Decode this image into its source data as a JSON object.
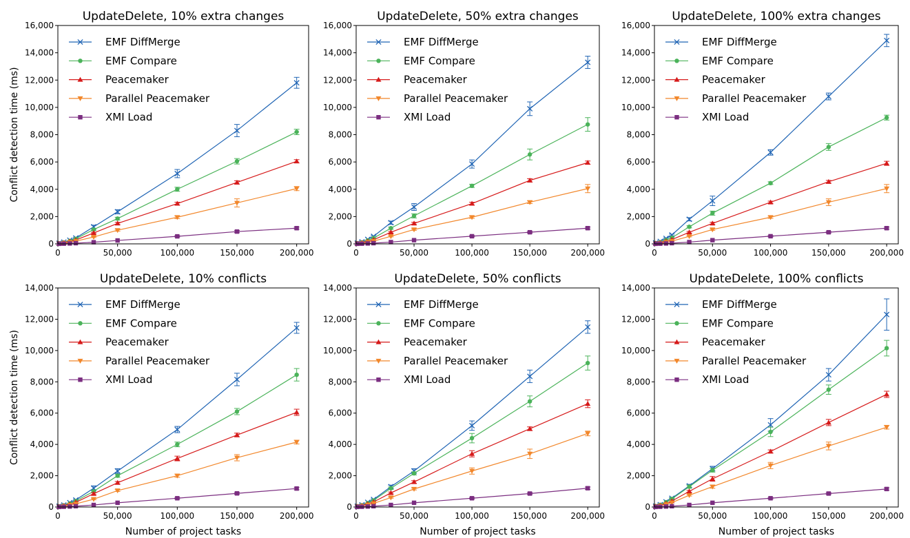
{
  "figure": {
    "xlabel": "Number of project tasks",
    "ylabel": "Conflict detection time (ms)"
  },
  "series_colors": {
    "EMF DiffMerge": "#1f64b4",
    "EMF Compare": "#4bb35a",
    "Peacemaker": "#d61a1a",
    "Parallel Peacemaker": "#f2872b",
    "XMI Load": "#7b2e80"
  },
  "series_markers": {
    "EMF DiffMerge": "x",
    "EMF Compare": "circle",
    "Peacemaker": "triangle-up",
    "Parallel Peacemaker": "triangle-down",
    "XMI Load": "square"
  },
  "chart_data": [
    {
      "type": "line",
      "title": "UpdateDelete, 10% extra changes",
      "xlabel": "",
      "ylabel": "Conflict detection time (ms)",
      "xlim": [
        0,
        210000
      ],
      "ylim": [
        0,
        16000
      ],
      "xticks": [
        0,
        50000,
        100000,
        150000,
        200000
      ],
      "xtick_labels": [
        "0",
        "50,000",
        "100,000",
        "150,000",
        "200,000"
      ],
      "yticks": [
        0,
        2000,
        4000,
        6000,
        8000,
        10000,
        12000,
        14000,
        16000
      ],
      "ytick_labels": [
        "0",
        "2,000",
        "4,000",
        "6,000",
        "8,000",
        "10,000",
        "12,000",
        "14,000",
        "16,000"
      ],
      "legend": "upper-left",
      "x": [
        1000,
        5000,
        10000,
        15000,
        30000,
        50000,
        100000,
        150000,
        200000
      ],
      "series": [
        {
          "name": "EMF DiffMerge",
          "values": [
            50,
            130,
            270,
            430,
            1250,
            2350,
            5150,
            8300,
            11800
          ],
          "err": [
            10,
            20,
            30,
            40,
            120,
            150,
            300,
            450,
            400
          ]
        },
        {
          "name": "EMF Compare",
          "values": [
            40,
            100,
            220,
            370,
            1050,
            1850,
            4000,
            6050,
            8200
          ],
          "err": [
            10,
            15,
            25,
            30,
            60,
            100,
            150,
            200,
            200
          ]
        },
        {
          "name": "Peacemaker",
          "values": [
            30,
            80,
            180,
            280,
            800,
            1500,
            2950,
            4500,
            6050
          ],
          "err": [
            5,
            10,
            20,
            25,
            50,
            80,
            100,
            120,
            120
          ]
        },
        {
          "name": "Parallel Peacemaker",
          "values": [
            20,
            60,
            120,
            200,
            500,
            1000,
            1950,
            3000,
            4050
          ],
          "err": [
            5,
            10,
            15,
            20,
            40,
            70,
            100,
            300,
            150
          ]
        },
        {
          "name": "XMI Load",
          "values": [
            5,
            15,
            30,
            50,
            120,
            250,
            550,
            900,
            1150
          ],
          "err": [
            2,
            5,
            5,
            8,
            15,
            30,
            50,
            80,
            80
          ]
        }
      ]
    },
    {
      "type": "line",
      "title": "UpdateDelete, 50% extra changes",
      "xlabel": "",
      "ylabel": "",
      "xlim": [
        0,
        210000
      ],
      "ylim": [
        0,
        16000
      ],
      "xticks": [
        0,
        50000,
        100000,
        150000,
        200000
      ],
      "xtick_labels": [
        "0",
        "50,000",
        "100,000",
        "150,000",
        "200,000"
      ],
      "yticks": [
        0,
        2000,
        4000,
        6000,
        8000,
        10000,
        12000,
        14000,
        16000
      ],
      "ytick_labels": [
        "0",
        "2,000",
        "4,000",
        "6,000",
        "8,000",
        "10,000",
        "12,000",
        "14,000",
        "16,000"
      ],
      "legend": "upper-left",
      "x": [
        1000,
        5000,
        10000,
        15000,
        30000,
        50000,
        100000,
        150000,
        200000
      ],
      "series": [
        {
          "name": "EMF DiffMerge",
          "values": [
            60,
            150,
            330,
            550,
            1550,
            2700,
            5850,
            9900,
            13300
          ],
          "err": [
            10,
            20,
            30,
            50,
            120,
            250,
            300,
            500,
            450
          ]
        },
        {
          "name": "EMF Compare",
          "values": [
            45,
            110,
            250,
            420,
            1150,
            2050,
            4250,
            6550,
            8750
          ],
          "err": [
            10,
            15,
            25,
            30,
            80,
            150,
            120,
            400,
            500
          ]
        },
        {
          "name": "Peacemaker",
          "values": [
            30,
            80,
            180,
            300,
            850,
            1500,
            2950,
            4650,
            5950
          ],
          "err": [
            5,
            10,
            20,
            25,
            60,
            80,
            100,
            120,
            120
          ]
        },
        {
          "name": "Parallel Peacemaker",
          "values": [
            20,
            55,
            120,
            200,
            550,
            1050,
            1950,
            3050,
            4050
          ],
          "err": [
            5,
            10,
            15,
            20,
            40,
            60,
            80,
            100,
            300
          ]
        },
        {
          "name": "XMI Load",
          "values": [
            5,
            15,
            30,
            50,
            130,
            270,
            560,
            850,
            1150
          ],
          "err": [
            2,
            5,
            5,
            8,
            15,
            30,
            50,
            60,
            80
          ]
        }
      ]
    },
    {
      "type": "line",
      "title": "UpdateDelete, 100% extra changes",
      "xlabel": "",
      "ylabel": "",
      "xlim": [
        0,
        210000
      ],
      "ylim": [
        0,
        16000
      ],
      "xticks": [
        0,
        50000,
        100000,
        150000,
        200000
      ],
      "xtick_labels": [
        "0",
        "50,000",
        "100,000",
        "150,000",
        "200,000"
      ],
      "yticks": [
        0,
        2000,
        4000,
        6000,
        8000,
        10000,
        12000,
        14000,
        16000
      ],
      "ytick_labels": [
        "0",
        "2,000",
        "4,000",
        "6,000",
        "8,000",
        "10,000",
        "12,000",
        "14,000",
        "16,000"
      ],
      "legend": "upper-left",
      "x": [
        1000,
        5000,
        10000,
        15000,
        30000,
        50000,
        100000,
        150000,
        200000
      ],
      "series": [
        {
          "name": "EMF DiffMerge",
          "values": [
            70,
            180,
            400,
            650,
            1800,
            3150,
            6700,
            10800,
            14900
          ],
          "err": [
            10,
            20,
            40,
            60,
            120,
            350,
            200,
            250,
            450
          ]
        },
        {
          "name": "EMF Compare",
          "values": [
            50,
            120,
            280,
            450,
            1250,
            2250,
            4450,
            7100,
            9250
          ],
          "err": [
            10,
            15,
            25,
            35,
            80,
            150,
            100,
            250,
            180
          ]
        },
        {
          "name": "Peacemaker",
          "values": [
            35,
            85,
            190,
            310,
            850,
            1500,
            3050,
            4550,
            5900
          ],
          "err": [
            5,
            10,
            20,
            25,
            60,
            80,
            80,
            100,
            150
          ]
        },
        {
          "name": "Parallel Peacemaker",
          "values": [
            20,
            55,
            120,
            200,
            550,
            1050,
            1950,
            3050,
            4050
          ],
          "err": [
            5,
            10,
            15,
            20,
            40,
            60,
            80,
            250,
            300
          ]
        },
        {
          "name": "XMI Load",
          "values": [
            5,
            15,
            30,
            50,
            130,
            270,
            560,
            850,
            1150
          ],
          "err": [
            2,
            5,
            5,
            8,
            15,
            30,
            50,
            60,
            80
          ]
        }
      ]
    },
    {
      "type": "line",
      "title": "UpdateDelete, 10% conflicts",
      "xlabel": "Number of project tasks",
      "ylabel": "Conflict detection time (ms)",
      "xlim": [
        0,
        210000
      ],
      "ylim": [
        0,
        14000
      ],
      "xticks": [
        0,
        50000,
        100000,
        150000,
        200000
      ],
      "xtick_labels": [
        "0",
        "50,000",
        "100,000",
        "150,000",
        "200,000"
      ],
      "yticks": [
        0,
        2000,
        4000,
        6000,
        8000,
        10000,
        12000,
        14000
      ],
      "ytick_labels": [
        "0",
        "2,000",
        "4,000",
        "6,000",
        "8,000",
        "10,000",
        "12,000",
        "14,000"
      ],
      "legend": "upper-left",
      "x": [
        1000,
        5000,
        10000,
        15000,
        30000,
        50000,
        100000,
        150000,
        200000
      ],
      "series": [
        {
          "name": "EMF DiffMerge",
          "values": [
            50,
            130,
            280,
            450,
            1200,
            2300,
            4950,
            8150,
            11450
          ],
          "err": [
            10,
            20,
            30,
            40,
            150,
            150,
            200,
            400,
            350
          ]
        },
        {
          "name": "EMF Compare",
          "values": [
            40,
            100,
            230,
            380,
            1000,
            2000,
            4000,
            6100,
            8450
          ],
          "err": [
            10,
            15,
            25,
            30,
            80,
            100,
            150,
            200,
            400
          ]
        },
        {
          "name": "Peacemaker",
          "values": [
            30,
            80,
            180,
            300,
            850,
            1550,
            3100,
            4600,
            6050
          ],
          "err": [
            5,
            10,
            20,
            25,
            60,
            80,
            150,
            120,
            200
          ]
        },
        {
          "name": "Parallel Peacemaker",
          "values": [
            20,
            55,
            120,
            200,
            500,
            1050,
            2000,
            3150,
            4150
          ],
          "err": [
            5,
            10,
            15,
            20,
            40,
            60,
            100,
            200,
            120
          ]
        },
        {
          "name": "XMI Load",
          "values": [
            5,
            15,
            30,
            50,
            130,
            270,
            560,
            870,
            1180
          ],
          "err": [
            2,
            5,
            5,
            8,
            15,
            30,
            50,
            60,
            80
          ]
        }
      ]
    },
    {
      "type": "line",
      "title": "UpdateDelete, 50% conflicts",
      "xlabel": "Number of project tasks",
      "ylabel": "",
      "xlim": [
        0,
        210000
      ],
      "ylim": [
        0,
        14000
      ],
      "xticks": [
        0,
        50000,
        100000,
        150000,
        200000
      ],
      "xtick_labels": [
        "0",
        "50,000",
        "100,000",
        "150,000",
        "200,000"
      ],
      "yticks": [
        0,
        2000,
        4000,
        6000,
        8000,
        10000,
        12000,
        14000
      ],
      "ytick_labels": [
        "0",
        "2,000",
        "4,000",
        "6,000",
        "8,000",
        "10,000",
        "12,000",
        "14,000"
      ],
      "legend": "upper-left",
      "x": [
        1000,
        5000,
        10000,
        15000,
        30000,
        50000,
        100000,
        150000,
        200000
      ],
      "series": [
        {
          "name": "EMF DiffMerge",
          "values": [
            55,
            140,
            300,
            480,
            1300,
            2300,
            5200,
            8350,
            11500
          ],
          "err": [
            10,
            20,
            30,
            40,
            100,
            150,
            300,
            400,
            400
          ]
        },
        {
          "name": "EMF Compare",
          "values": [
            45,
            110,
            250,
            420,
            1200,
            2150,
            4400,
            6750,
            9200
          ],
          "err": [
            10,
            15,
            25,
            30,
            80,
            100,
            300,
            350,
            450
          ]
        },
        {
          "name": "Peacemaker",
          "values": [
            35,
            90,
            200,
            320,
            900,
            1600,
            3400,
            5000,
            6600
          ],
          "err": [
            5,
            10,
            20,
            25,
            60,
            80,
            200,
            120,
            250
          ]
        },
        {
          "name": "Parallel Peacemaker",
          "values": [
            25,
            65,
            140,
            230,
            600,
            1150,
            2300,
            3400,
            4700
          ],
          "err": [
            5,
            10,
            15,
            20,
            40,
            60,
            200,
            300,
            150
          ]
        },
        {
          "name": "XMI Load",
          "values": [
            5,
            15,
            30,
            50,
            130,
            270,
            560,
            860,
            1200
          ],
          "err": [
            2,
            5,
            5,
            8,
            15,
            30,
            50,
            60,
            80
          ]
        }
      ]
    },
    {
      "type": "line",
      "title": "UpdateDelete, 100% conflicts",
      "xlabel": "Number of project tasks",
      "ylabel": "",
      "xlim": [
        0,
        210000
      ],
      "ylim": [
        0,
        14000
      ],
      "xticks": [
        0,
        50000,
        100000,
        150000,
        200000
      ],
      "xtick_labels": [
        "0",
        "50,000",
        "100,000",
        "150,000",
        "200,000"
      ],
      "yticks": [
        0,
        2000,
        4000,
        6000,
        8000,
        10000,
        12000,
        14000
      ],
      "ytick_labels": [
        "0",
        "2,000",
        "4,000",
        "6,000",
        "8,000",
        "10,000",
        "12,000",
        "14,000"
      ],
      "legend": "upper-left",
      "x": [
        1000,
        5000,
        10000,
        15000,
        30000,
        50000,
        100000,
        150000,
        200000
      ],
      "series": [
        {
          "name": "EMF DiffMerge",
          "values": [
            60,
            150,
            330,
            560,
            1350,
            2450,
            5250,
            8450,
            12300
          ],
          "err": [
            10,
            20,
            30,
            50,
            100,
            150,
            400,
            400,
            1000
          ]
        },
        {
          "name": "EMF Compare",
          "values": [
            55,
            140,
            310,
            520,
            1300,
            2350,
            4800,
            7500,
            10150
          ],
          "err": [
            10,
            20,
            30,
            40,
            100,
            120,
            300,
            300,
            500
          ]
        },
        {
          "name": "Peacemaker",
          "values": [
            40,
            100,
            230,
            380,
            1000,
            1800,
            3550,
            5400,
            7200
          ],
          "err": [
            5,
            10,
            20,
            30,
            60,
            150,
            100,
            200,
            200
          ]
        },
        {
          "name": "Parallel Peacemaker",
          "values": [
            30,
            75,
            170,
            280,
            750,
            1300,
            2650,
            3900,
            5100
          ],
          "err": [
            5,
            10,
            15,
            20,
            50,
            100,
            200,
            250,
            120
          ]
        },
        {
          "name": "XMI Load",
          "values": [
            5,
            15,
            30,
            50,
            130,
            270,
            560,
            860,
            1150
          ],
          "err": [
            2,
            5,
            5,
            8,
            15,
            30,
            50,
            60,
            80
          ]
        }
      ]
    }
  ]
}
